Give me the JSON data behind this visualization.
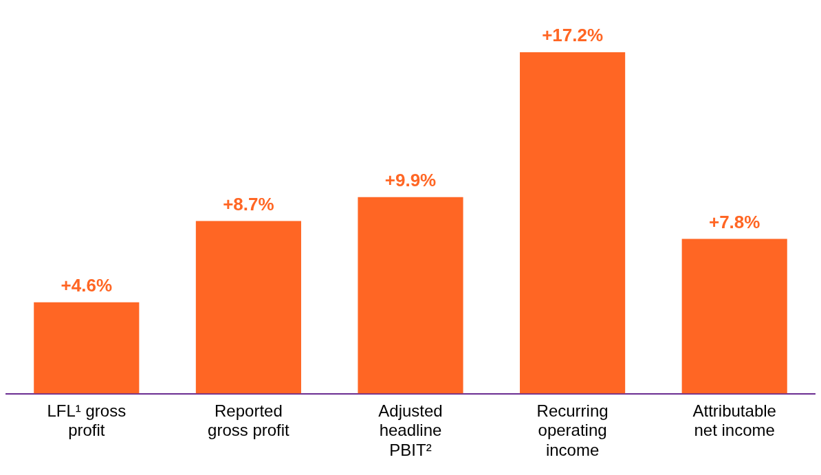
{
  "chart_data": {
    "type": "bar",
    "categories": [
      "LFL¹ gross profit",
      "Reported gross profit",
      "Adjusted headline PBIT²",
      "Recurring operating income",
      "Attributable net income"
    ],
    "values": [
      4.6,
      8.7,
      9.9,
      17.2,
      7.8
    ],
    "value_labels": [
      "+4.6%",
      "+8.7%",
      "+9.9%",
      "+17.2%",
      "+7.8%"
    ],
    "color": "#ff6624",
    "grid": false,
    "legend": false
  }
}
